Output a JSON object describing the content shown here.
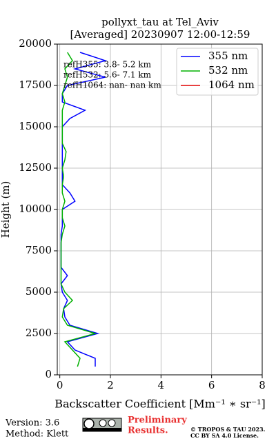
{
  "chart_data": {
    "type": "line",
    "title": [
      "pollyxt_tau at Tel_Aviv",
      "[Averaged] 20230907 12:00-12:59"
    ],
    "xlabel": "Backscatter Coefficient [Mm⁻¹ ∗ sr⁻¹]",
    "ylabel": "Height (m)",
    "annotations": [
      "refH355:  3.8- 5.2 km",
      "refH532:  5.6- 7.1 km",
      "refH1064:  nan- nan km"
    ],
    "heights": [
      500,
      1000,
      1500,
      2000,
      2500,
      3000,
      3500,
      4000,
      4500,
      5000,
      5500,
      6000,
      6500,
      7000,
      7500,
      8000,
      8500,
      9000,
      9500,
      10000,
      10500,
      11000,
      11500,
      12000,
      12500,
      13000,
      13500,
      14000,
      14500,
      15000,
      15500,
      16000,
      16500,
      17000,
      17500,
      18000,
      18500,
      19000,
      19500
    ],
    "series": [
      {
        "name": "355 nm",
        "color": "#0000ff",
        "values": [
          1.4,
          1.4,
          0.6,
          0.3,
          1.5,
          0.4,
          0.2,
          0.15,
          0.3,
          0.1,
          0.05,
          0.3,
          0.05,
          0.05,
          0.05,
          0.05,
          0.05,
          0.1,
          0.1,
          0.1,
          0.6,
          0.4,
          0.1,
          0.1,
          0.1,
          0.1,
          0.1,
          0.1,
          0.1,
          0.1,
          0.4,
          1.0,
          0.1,
          0.1,
          0.3,
          1.8,
          0.6,
          1.8,
          0.8
        ]
      },
      {
        "name": "532 nm",
        "color": "#00b000",
        "values": [
          0.7,
          0.8,
          0.5,
          0.2,
          1.4,
          0.3,
          0.1,
          0.15,
          0.5,
          0.2,
          0.05,
          0.05,
          0.05,
          0.05,
          0.05,
          0.05,
          0.1,
          0.2,
          0.1,
          0.1,
          0.2,
          0.1,
          0.1,
          0.15,
          0.1,
          0.2,
          0.25,
          0.1,
          0.1,
          0.1,
          0.1,
          0.1,
          0.2,
          0.1,
          0.2,
          0.3,
          0.2,
          0.5,
          0.3
        ]
      },
      {
        "name": "1064 nm",
        "color": "#e00000",
        "values": [
          null,
          null,
          null,
          null,
          null,
          null,
          null,
          null,
          null,
          null,
          null,
          null,
          null,
          null,
          null,
          null,
          null,
          null,
          null,
          null,
          null,
          null,
          null,
          null,
          null,
          null,
          null,
          null,
          null,
          null,
          null,
          null,
          null,
          null,
          null,
          null,
          null,
          null,
          null
        ]
      }
    ],
    "xlim": [
      -0.1,
      8
    ],
    "xticks": [
      0,
      2,
      4,
      6,
      8
    ],
    "ylim": [
      0,
      20000
    ],
    "yticks": [
      0,
      2500,
      5000,
      7500,
      10000,
      12500,
      15000,
      17500,
      20000
    ],
    "grid": true,
    "legend": "upper right"
  },
  "footer": {
    "version": "Version: 3.6",
    "method": "Method: Klett",
    "notice": [
      "Preliminary",
      "Results."
    ],
    "license": [
      "© TROPOS & TAU 2023.",
      "CC BY SA 4.0 License."
    ]
  }
}
